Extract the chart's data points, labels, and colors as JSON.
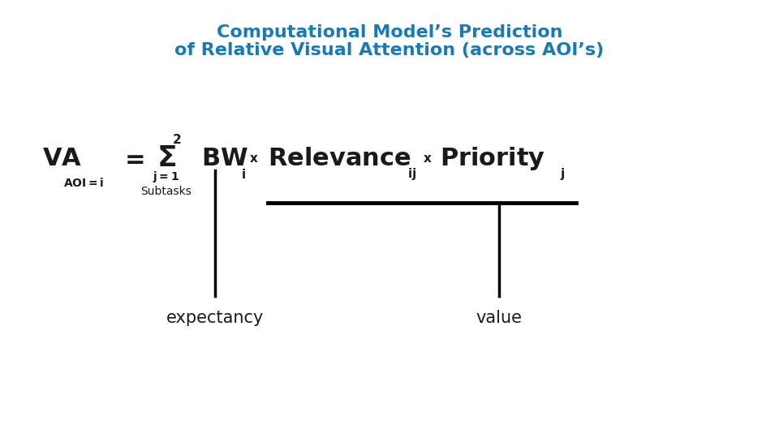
{
  "title_line1": "Computational Model’s Prediction",
  "title_line2": "of Relative Visual Attention (across AOI’s)",
  "title_color": "#1a7ab5",
  "title_fontsize": 16,
  "bg_color": "#ffffff",
  "formula_color": "#1a1a1a",
  "label_color": "#1a1a1a",
  "line_color": "#000000",
  "label_expectancy": "expectancy",
  "label_value": "value",
  "label_subtasks": "Subtasks",
  "formula_fontsize": 22,
  "sub_fontsize": 11,
  "small_fontsize": 11,
  "label_fontsize": 15
}
